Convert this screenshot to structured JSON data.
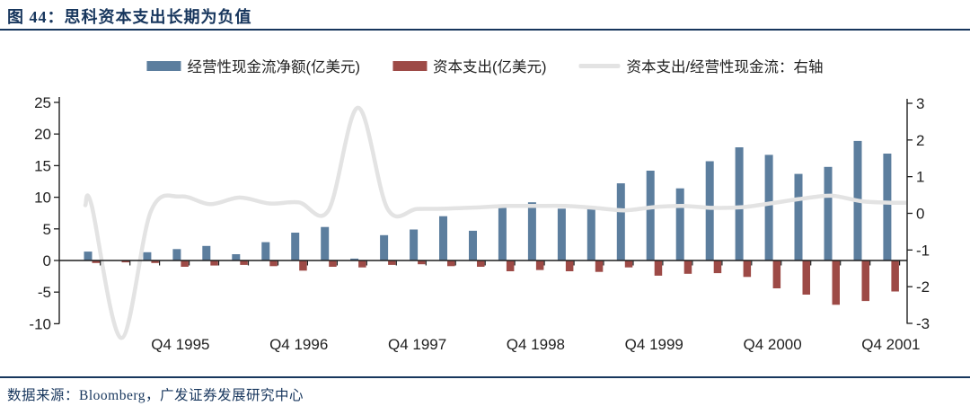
{
  "header": {
    "title": "图 44：思科资本支出长期为负值"
  },
  "footer": {
    "source": "数据来源：Bloomberg，广发证券发展研究中心"
  },
  "colors": {
    "ocf_bar": "#5c7e9e",
    "capex_bar": "#9d4a46",
    "ratio_line": "#e3e3e3",
    "axis": "#1f1f1f",
    "navy": "#17365d"
  },
  "legend": {
    "items": [
      {
        "id": "ocf",
        "label": "经营性现金流净额(亿美元)",
        "swatch": "bar"
      },
      {
        "id": "capex",
        "label": "资本支出(亿美元)",
        "swatch": "bar"
      },
      {
        "id": "ratio",
        "label": "资本支出/经营性现金流：右轴",
        "swatch": "line"
      }
    ]
  },
  "chart_data": {
    "type": "bar",
    "title": "思科资本支出长期为负值",
    "xlabel": "",
    "ylabel": "",
    "categories": [
      "1995Q1",
      "1995Q2",
      "1995Q3",
      "1995Q4",
      "1996Q1",
      "1996Q2",
      "1996Q3",
      "1996Q4",
      "1997Q1",
      "1997Q2",
      "1997Q3",
      "1997Q4",
      "1998Q1",
      "1998Q2",
      "1998Q3",
      "1998Q4",
      "1999Q1",
      "1999Q2",
      "1999Q3",
      "1999Q4",
      "2000Q1",
      "2000Q2",
      "2000Q3",
      "2000Q4",
      "2001Q1",
      "2001Q2",
      "2001Q3",
      "2001Q4"
    ],
    "x_axis_labels_shown": [
      "Q4 1995",
      "Q4 1996",
      "Q4 1997",
      "Q4 1998",
      "Q4 1999",
      "Q4 2000",
      "Q4 2001"
    ],
    "x_label_every_n": 4,
    "left_axis": {
      "min": -10,
      "max": 25,
      "ticks": [
        25,
        20,
        15,
        10,
        5,
        0,
        -5,
        -10
      ]
    },
    "right_axis": {
      "min": -3,
      "max": 3,
      "ticks": [
        3,
        2,
        1,
        0,
        -1,
        -2,
        -3
      ]
    },
    "grid": false,
    "legend_position": "top",
    "series": [
      {
        "name": "经营性现金流净额(亿美元)",
        "type": "bar",
        "axis": "left",
        "values": [
          1.4,
          0,
          1.3,
          1.8,
          2.3,
          1.0,
          2.9,
          4.4,
          5.3,
          0.3,
          4.0,
          4.9,
          7.0,
          4.7,
          8.4,
          9.2,
          8.2,
          8.5,
          12.2,
          14.2,
          11.4,
          15.7,
          17.9,
          16.7,
          13.7,
          14.8,
          18.9,
          16.9
        ]
      },
      {
        "name": "资本支出(亿美元)",
        "type": "bar",
        "axis": "left",
        "values": [
          -0.4,
          -0.3,
          -0.4,
          -1.0,
          -0.8,
          -0.7,
          -0.9,
          -1.6,
          -1.0,
          -1.1,
          -0.7,
          -0.6,
          -0.9,
          -1.0,
          -1.7,
          -1.5,
          -1.7,
          -1.8,
          -1.1,
          -2.4,
          -2.1,
          -2.0,
          -2.6,
          -4.4,
          -5.4,
          -7.0,
          -6.4,
          -4.9
        ]
      },
      {
        "name": "资本支出/经营性现金流",
        "type": "line",
        "axis": "right",
        "values": [
          0.22,
          -3.4,
          0.05,
          0.46,
          0.25,
          0.43,
          0.27,
          0.3,
          0.08,
          2.88,
          0.12,
          0.12,
          0.13,
          0.16,
          0.2,
          0.2,
          0.2,
          0.15,
          0.08,
          0.17,
          0.2,
          0.15,
          0.17,
          0.28,
          0.4,
          0.48,
          0.33,
          0.29
        ]
      }
    ]
  }
}
